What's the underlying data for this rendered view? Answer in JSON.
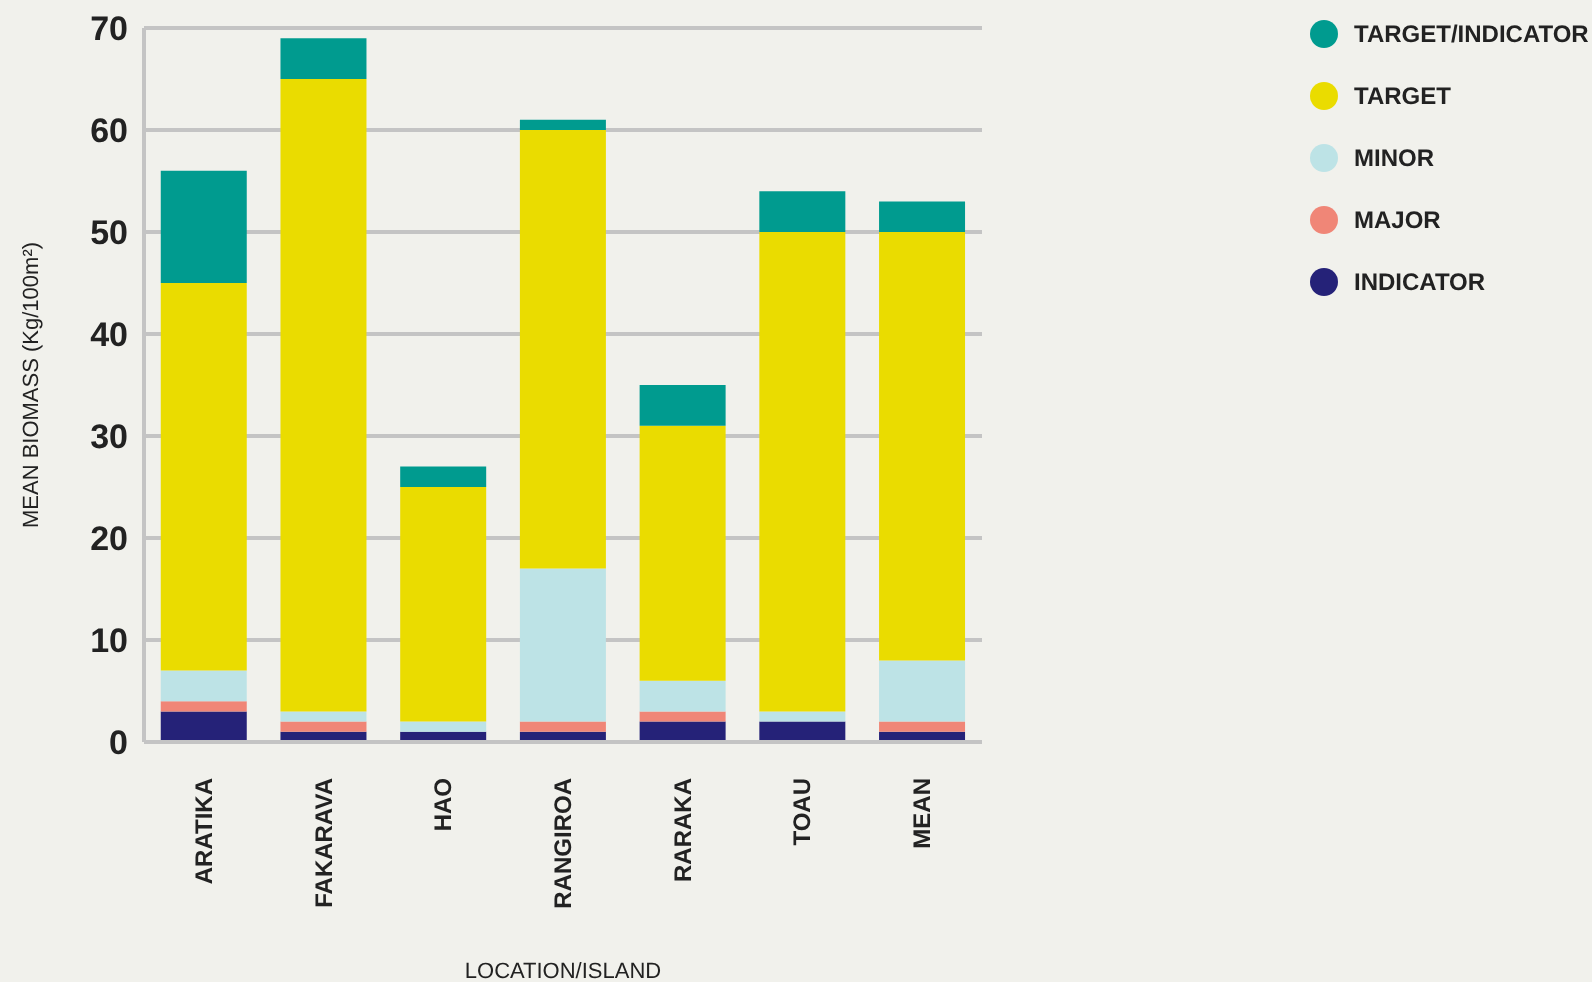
{
  "chart_data": {
    "type": "bar",
    "stacked": true,
    "xlabel": "LOCATION/ISLAND",
    "ylabel": "MEAN BIOMASS (Kg/100m²)",
    "categories": [
      "ARATIKA",
      "FAKARAVA",
      "HAO",
      "RANGIROA",
      "RARAKA",
      "TOAU",
      "MEAN"
    ],
    "series": [
      {
        "name": "INDICATOR",
        "color": "#252278",
        "values": [
          3,
          1,
          1,
          1,
          2,
          2,
          1
        ]
      },
      {
        "name": "MAJOR",
        "color": "#f08677",
        "values": [
          1,
          1,
          0,
          1,
          1,
          0,
          1
        ]
      },
      {
        "name": "MINOR",
        "color": "#bde3e6",
        "values": [
          3,
          1,
          1,
          15,
          3,
          1,
          6
        ]
      },
      {
        "name": "TARGET",
        "color": "#eadc00",
        "values": [
          38,
          62,
          23,
          43,
          25,
          47,
          42
        ]
      },
      {
        "name": "TARGET/INDICATOR",
        "color": "#009b8f",
        "values": [
          11,
          4,
          2,
          1,
          4,
          4,
          3
        ]
      }
    ],
    "ylim": [
      0,
      70
    ],
    "yticks": [
      0,
      10,
      20,
      30,
      40,
      50,
      60,
      70
    ],
    "grid": "y",
    "legend": "right"
  }
}
